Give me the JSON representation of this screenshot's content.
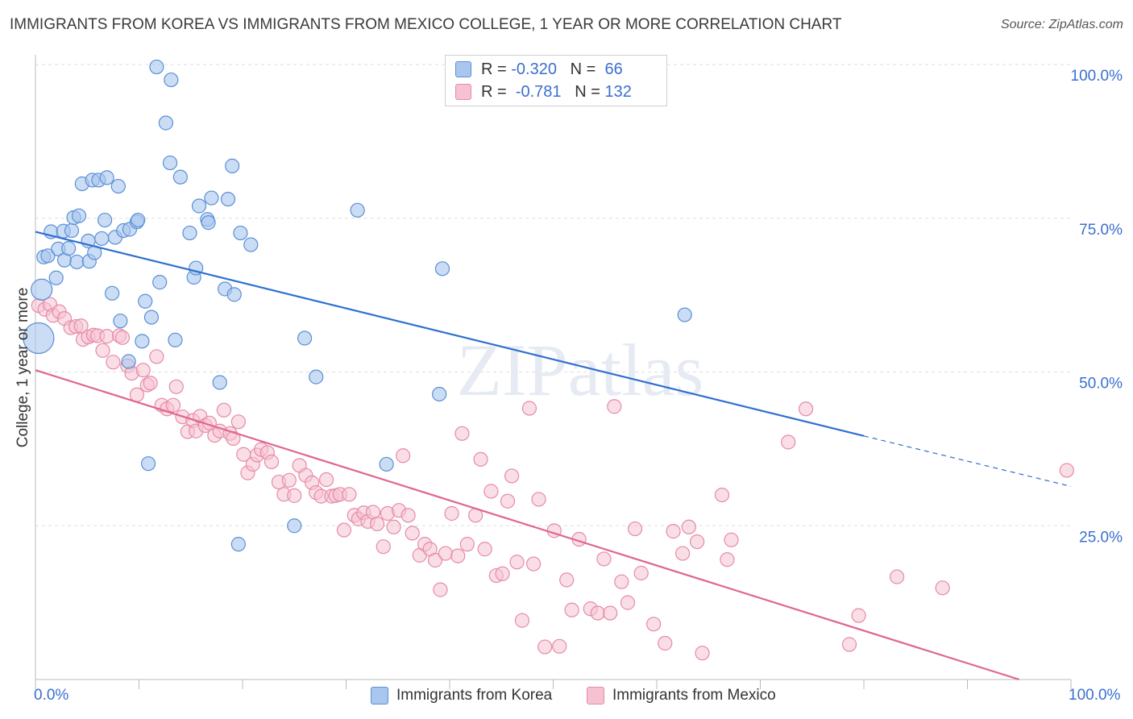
{
  "title": "IMMIGRANTS FROM KOREA VS IMMIGRANTS FROM MEXICO COLLEGE, 1 YEAR OR MORE CORRELATION CHART",
  "source": "Source: ZipAtlas.com",
  "watermark": "ZIPatlas",
  "legend": {
    "rows": [
      {
        "r_label": "R =",
        "r_value": "-0.320",
        "n_label": "N =",
        "n_value": "66"
      },
      {
        "r_label": "R =",
        "r_value": "-0.781",
        "n_label": "N =",
        "n_value": "132"
      }
    ]
  },
  "bottom_legend": [
    "Immigrants from Korea",
    "Immigrants from Mexico"
  ],
  "x_axis": {
    "min_label": "0.0%",
    "max_label": "100.0%"
  },
  "colors": {
    "korea_fill": "#a9c7ee",
    "korea_stroke": "#5a8fd6",
    "korea_line": "#2f6fd0",
    "mexico_fill": "#f6c2d2",
    "mexico_stroke": "#e68aa8",
    "mexico_line": "#e0668f",
    "tick_label": "#3a6fd0",
    "grid": "#dddddd"
  },
  "chart_data": {
    "type": "scatter",
    "title": "IMMIGRANTS FROM KOREA VS IMMIGRANTS FROM MEXICO COLLEGE, 1 YEAR OR MORE CORRELATION CHART",
    "xlabel": "",
    "ylabel": "College, 1 year or more",
    "xlim": [
      0,
      100
    ],
    "ylim": [
      0,
      100
    ],
    "y_ticks": [
      25,
      50,
      75,
      100
    ],
    "y_tick_labels": [
      "25.0%",
      "50.0%",
      "75.0%",
      "100.0%"
    ],
    "grid": true,
    "legend_position": "top-center",
    "series": [
      {
        "name": "Immigrants from Korea",
        "r": -0.32,
        "n": 66,
        "trend": {
          "x0": 0,
          "y0": 72.8,
          "x1": 80,
          "y1": 39.6,
          "dashed_to_x": 100,
          "dashed_to_y": 31.4
        },
        "points": [
          [
            0.3,
            55.5
          ],
          [
            0.6,
            63.4
          ],
          [
            0.8,
            68.7
          ],
          [
            1.2,
            68.9
          ],
          [
            1.5,
            72.8
          ],
          [
            2.0,
            65.3
          ],
          [
            2.2,
            70.0
          ],
          [
            2.7,
            72.9
          ],
          [
            2.8,
            68.2
          ],
          [
            3.2,
            70.1
          ],
          [
            3.5,
            73.0
          ],
          [
            3.7,
            75.1
          ],
          [
            4.0,
            67.9
          ],
          [
            4.2,
            75.4
          ],
          [
            4.5,
            80.6
          ],
          [
            5.1,
            71.3
          ],
          [
            5.2,
            68.0
          ],
          [
            5.5,
            81.2
          ],
          [
            5.7,
            69.4
          ],
          [
            6.1,
            81.2
          ],
          [
            6.4,
            71.7
          ],
          [
            6.7,
            74.7
          ],
          [
            6.9,
            81.6
          ],
          [
            7.4,
            62.8
          ],
          [
            7.7,
            71.9
          ],
          [
            8.0,
            80.2
          ],
          [
            8.2,
            58.3
          ],
          [
            8.5,
            73.0
          ],
          [
            9.0,
            51.7
          ],
          [
            9.1,
            73.2
          ],
          [
            9.8,
            74.4
          ],
          [
            9.9,
            74.7
          ],
          [
            10.3,
            55.0
          ],
          [
            10.6,
            61.5
          ],
          [
            10.9,
            35.1
          ],
          [
            11.2,
            58.9
          ],
          [
            11.7,
            99.6
          ],
          [
            12.0,
            64.6
          ],
          [
            12.6,
            90.5
          ],
          [
            13.0,
            84.0
          ],
          [
            13.1,
            97.5
          ],
          [
            13.5,
            55.2
          ],
          [
            14.0,
            81.7
          ],
          [
            14.9,
            72.6
          ],
          [
            15.3,
            65.4
          ],
          [
            15.5,
            66.9
          ],
          [
            15.8,
            77.0
          ],
          [
            16.6,
            74.8
          ],
          [
            16.7,
            74.3
          ],
          [
            17.0,
            78.3
          ],
          [
            17.8,
            48.3
          ],
          [
            18.3,
            63.5
          ],
          [
            18.6,
            78.1
          ],
          [
            19.0,
            83.5
          ],
          [
            19.2,
            62.6
          ],
          [
            19.6,
            22.0
          ],
          [
            19.8,
            72.6
          ],
          [
            20.8,
            70.7
          ],
          [
            25.0,
            25.0
          ],
          [
            26.0,
            55.5
          ],
          [
            27.1,
            49.2
          ],
          [
            31.1,
            76.3
          ],
          [
            33.9,
            35.0
          ],
          [
            39.0,
            46.4
          ],
          [
            39.3,
            66.8
          ],
          [
            62.7,
            59.3
          ]
        ],
        "large_points": [
          [
            0.3,
            55.5,
            19
          ],
          [
            0.6,
            63.4,
            13
          ]
        ]
      },
      {
        "name": "Immigrants from Mexico",
        "r": -0.781,
        "n": 132,
        "trend": {
          "x0": 0,
          "y0": 50.3,
          "x1": 95,
          "y1": 0
        },
        "points": [
          [
            0.3,
            60.8
          ],
          [
            0.9,
            60.2
          ],
          [
            1.4,
            61.0
          ],
          [
            1.7,
            59.2
          ],
          [
            2.3,
            59.8
          ],
          [
            2.8,
            58.7
          ],
          [
            3.4,
            57.2
          ],
          [
            3.9,
            57.4
          ],
          [
            4.4,
            57.5
          ],
          [
            4.6,
            55.3
          ],
          [
            5.1,
            55.7
          ],
          [
            5.6,
            56.0
          ],
          [
            6.0,
            55.9
          ],
          [
            6.5,
            53.5
          ],
          [
            6.9,
            55.8
          ],
          [
            7.5,
            51.6
          ],
          [
            8.1,
            55.9
          ],
          [
            8.4,
            55.6
          ],
          [
            8.9,
            51.0
          ],
          [
            9.3,
            49.8
          ],
          [
            9.8,
            46.3
          ],
          [
            10.4,
            50.3
          ],
          [
            10.8,
            47.9
          ],
          [
            11.1,
            48.2
          ],
          [
            11.7,
            52.5
          ],
          [
            12.2,
            44.6
          ],
          [
            12.7,
            44.0
          ],
          [
            13.3,
            44.6
          ],
          [
            13.6,
            47.6
          ],
          [
            14.2,
            42.7
          ],
          [
            14.7,
            40.3
          ],
          [
            15.2,
            42.1
          ],
          [
            15.5,
            40.4
          ],
          [
            15.9,
            42.8
          ],
          [
            16.4,
            41.3
          ],
          [
            16.8,
            41.7
          ],
          [
            17.3,
            39.7
          ],
          [
            17.8,
            40.4
          ],
          [
            18.2,
            43.8
          ],
          [
            18.8,
            40.0
          ],
          [
            19.1,
            39.2
          ],
          [
            19.6,
            41.9
          ],
          [
            20.1,
            36.6
          ],
          [
            20.5,
            33.6
          ],
          [
            21.0,
            35.0
          ],
          [
            21.4,
            36.5
          ],
          [
            21.8,
            37.4
          ],
          [
            22.4,
            36.9
          ],
          [
            22.8,
            35.4
          ],
          [
            23.5,
            32.1
          ],
          [
            24.0,
            30.1
          ],
          [
            24.5,
            32.4
          ],
          [
            25.0,
            29.9
          ],
          [
            25.5,
            34.8
          ],
          [
            26.1,
            33.2
          ],
          [
            26.7,
            32.0
          ],
          [
            27.1,
            30.4
          ],
          [
            27.6,
            29.8
          ],
          [
            28.1,
            32.5
          ],
          [
            28.6,
            29.8
          ],
          [
            29.0,
            29.9
          ],
          [
            29.4,
            30.1
          ],
          [
            29.8,
            24.3
          ],
          [
            30.3,
            30.1
          ],
          [
            30.8,
            26.7
          ],
          [
            31.2,
            26.1
          ],
          [
            31.7,
            27.1
          ],
          [
            32.1,
            25.7
          ],
          [
            32.6,
            27.2
          ],
          [
            33.0,
            25.3
          ],
          [
            33.6,
            21.6
          ],
          [
            34.0,
            27.0
          ],
          [
            34.6,
            24.8
          ],
          [
            35.1,
            27.5
          ],
          [
            35.5,
            36.4
          ],
          [
            36.0,
            26.7
          ],
          [
            36.4,
            23.8
          ],
          [
            37.1,
            20.2
          ],
          [
            37.6,
            22.0
          ],
          [
            38.1,
            21.2
          ],
          [
            38.6,
            19.4
          ],
          [
            39.1,
            14.6
          ],
          [
            39.6,
            20.5
          ],
          [
            40.2,
            27.0
          ],
          [
            40.8,
            20.1
          ],
          [
            41.2,
            40.0
          ],
          [
            41.7,
            22.0
          ],
          [
            42.5,
            26.7
          ],
          [
            43.0,
            35.8
          ],
          [
            43.4,
            21.2
          ],
          [
            44.0,
            30.6
          ],
          [
            44.5,
            16.9
          ],
          [
            45.1,
            17.2
          ],
          [
            45.6,
            29.0
          ],
          [
            46.0,
            33.1
          ],
          [
            46.5,
            19.1
          ],
          [
            47.0,
            9.6
          ],
          [
            47.7,
            44.1
          ],
          [
            48.1,
            18.8
          ],
          [
            48.6,
            29.3
          ],
          [
            49.2,
            5.3
          ],
          [
            50.1,
            24.2
          ],
          [
            50.6,
            5.4
          ],
          [
            51.3,
            16.2
          ],
          [
            51.8,
            11.3
          ],
          [
            52.5,
            22.8
          ],
          [
            53.6,
            11.5
          ],
          [
            54.3,
            10.8
          ],
          [
            54.9,
            19.6
          ],
          [
            55.5,
            10.8
          ],
          [
            55.9,
            44.4
          ],
          [
            56.6,
            15.9
          ],
          [
            57.2,
            12.5
          ],
          [
            57.9,
            24.5
          ],
          [
            58.5,
            17.3
          ],
          [
            59.7,
            9.0
          ],
          [
            60.8,
            5.9
          ],
          [
            61.6,
            24.1
          ],
          [
            62.5,
            20.5
          ],
          [
            63.1,
            24.8
          ],
          [
            63.9,
            22.4
          ],
          [
            64.4,
            4.3
          ],
          [
            66.3,
            30.0
          ],
          [
            66.8,
            19.5
          ],
          [
            67.2,
            22.7
          ],
          [
            72.7,
            38.6
          ],
          [
            74.4,
            44.0
          ],
          [
            78.6,
            5.7
          ],
          [
            79.5,
            10.4
          ],
          [
            83.2,
            16.7
          ],
          [
            87.6,
            14.9
          ],
          [
            99.6,
            34.0
          ]
        ]
      }
    ]
  }
}
